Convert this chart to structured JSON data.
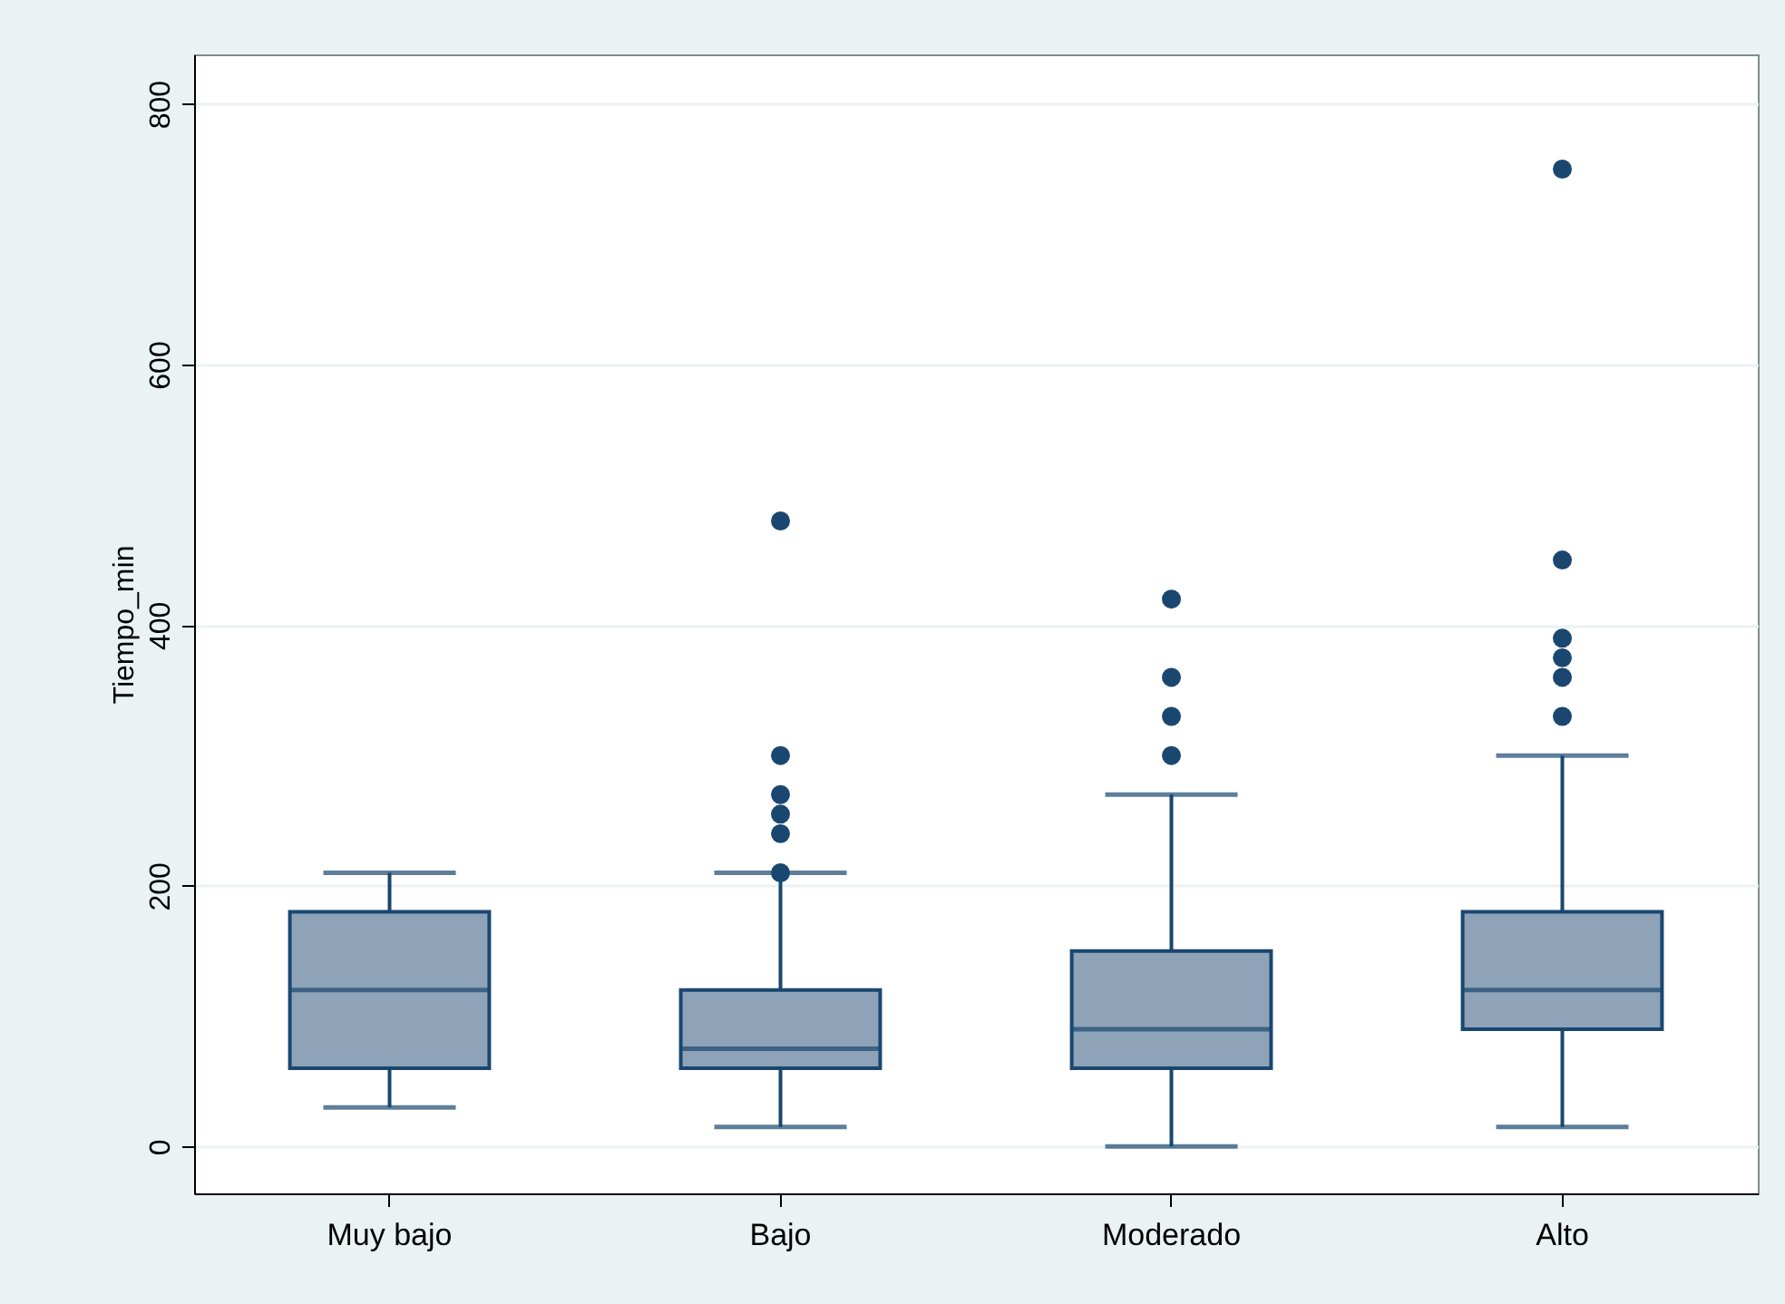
{
  "chart_data": {
    "type": "box",
    "ylabel": "Tiempo_min",
    "categories": [
      "Muy bajo",
      "Bajo",
      "Moderado",
      "Alto"
    ],
    "series": [
      {
        "color": "#1a476f",
        "boxes": [
          {
            "low": 30,
            "q1": 60,
            "median": 120,
            "q3": 180,
            "high": 210
          },
          {
            "low": 15,
            "q1": 60,
            "median": 75,
            "q3": 120,
            "high": 210,
            "outliers": [
              210,
              240,
              255,
              270,
              300,
              480
            ]
          },
          {
            "low": 0,
            "q1": 60,
            "median": 90,
            "q3": 150,
            "high": 270,
            "outliers": [
              300,
              330,
              360,
              420
            ]
          },
          {
            "low": 15,
            "q1": 90,
            "median": 120,
            "q3": 180,
            "high": 300,
            "outliers": [
              330,
              360,
              375,
              390,
              450,
              750
            ]
          }
        ]
      }
    ],
    "ylim": [
      -36,
      838
    ],
    "yticks": [
      0,
      200,
      400,
      600,
      800
    ],
    "grid": "y",
    "marker": "circle"
  }
}
